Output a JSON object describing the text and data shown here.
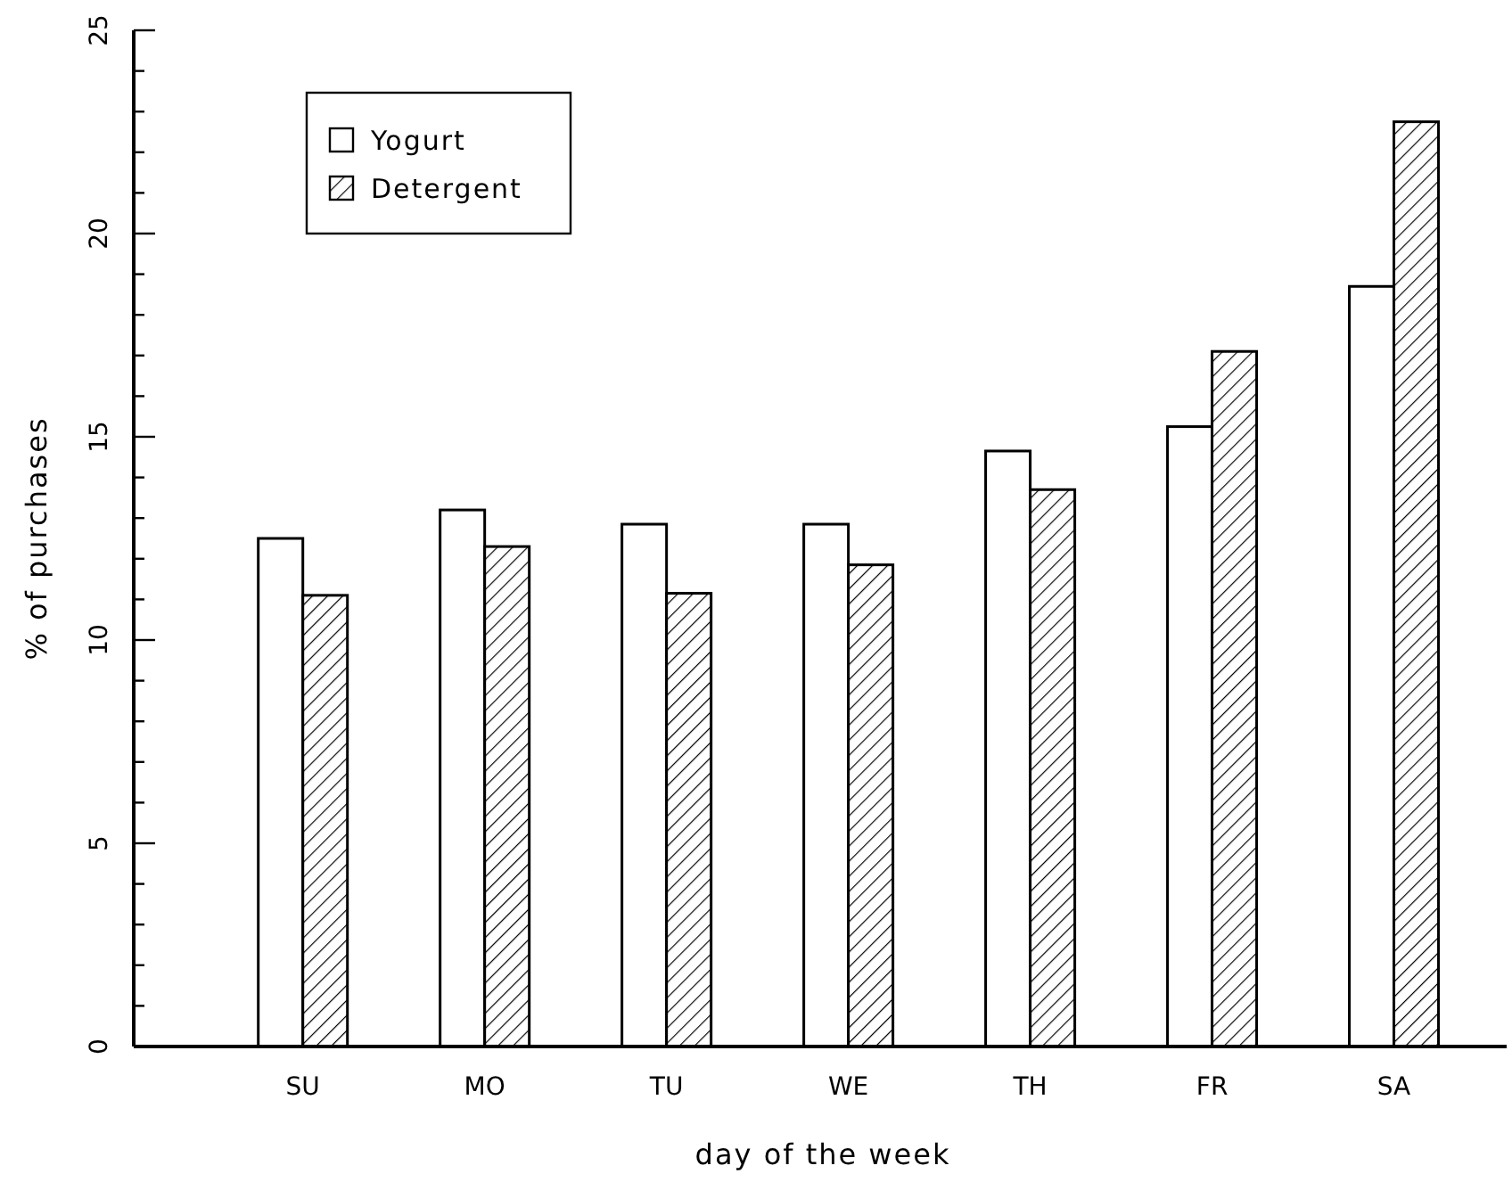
{
  "chart_data": {
    "type": "bar",
    "xlabel": "day of the week",
    "ylabel": "% of purchases",
    "categories": [
      "SU",
      "MO",
      "TU",
      "WE",
      "TH",
      "FR",
      "SA"
    ],
    "series": [
      {
        "name": "Yogurt",
        "color": "#ffffff",
        "values": [
          12.5,
          13.2,
          12.85,
          12.85,
          14.65,
          15.25,
          18.7
        ]
      },
      {
        "name": "Detergent",
        "color": "#000000",
        "values": [
          11.1,
          12.3,
          11.15,
          11.85,
          13.7,
          17.1,
          22.75
        ]
      }
    ],
    "ylim": [
      0,
      25
    ],
    "yticks": [
      0,
      {
        "value": 1,
        "label": null
      },
      {
        "value": 2,
        "label": null
      },
      {
        "value": 3,
        "label": null
      },
      {
        "value": 4,
        "label": null
      },
      5,
      {
        "value": 6,
        "label": null
      },
      {
        "value": 7,
        "label": null
      },
      {
        "value": 8,
        "label": null
      },
      {
        "value": 9,
        "label": null
      },
      10,
      {
        "value": 11,
        "label": null
      },
      {
        "value": 12,
        "label": null
      },
      {
        "value": 13,
        "label": null
      },
      {
        "value": 14,
        "label": null
      },
      15,
      {
        "value": 16,
        "label": null
      },
      {
        "value": 17,
        "label": null
      },
      {
        "value": 18,
        "label": null
      },
      {
        "value": 19,
        "label": null
      },
      20,
      {
        "value": 21,
        "label": null
      },
      {
        "value": 22,
        "label": null
      },
      {
        "value": 23,
        "label": null
      },
      {
        "value": 24,
        "label": null
      },
      25
    ],
    "legend": "top left",
    "grid": false
  }
}
